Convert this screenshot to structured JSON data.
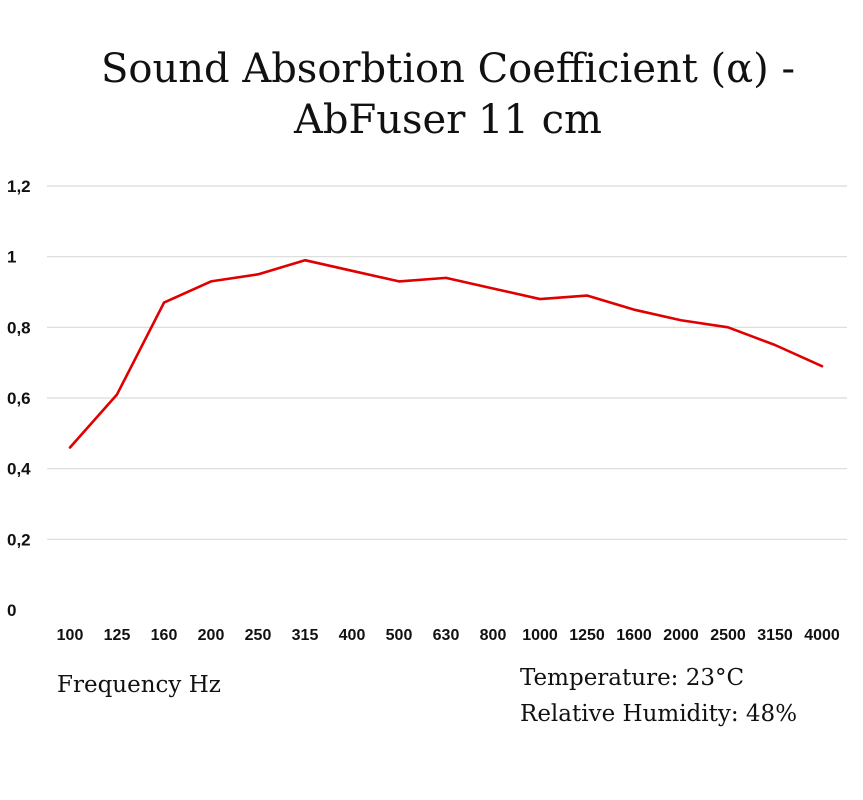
{
  "chart_data": {
    "type": "line",
    "title_lines": [
      "Sound Absorbtion Coefficient (α) -",
      "AbFuser 11 cm"
    ],
    "categories": [
      "100",
      "125",
      "160",
      "200",
      "250",
      "315",
      "400",
      "500",
      "630",
      "800",
      "1000",
      "1250",
      "1600",
      "2000",
      "2500",
      "3150",
      "4000"
    ],
    "series": [
      {
        "values": [
          0.46,
          0.61,
          0.87,
          0.93,
          0.95,
          0.99,
          0.96,
          0.93,
          0.94,
          0.91,
          0.88,
          0.89,
          0.85,
          0.82,
          0.8,
          0.75,
          0.69
        ],
        "color": "#e00000"
      }
    ],
    "ylim": [
      0,
      1.2
    ],
    "yticks": [
      0,
      0.2,
      0.4,
      0.6,
      0.8,
      1,
      1.2
    ],
    "ytick_labels": [
      "0",
      "0,2",
      "0,4",
      "0,6",
      "0,8",
      "1",
      "1,2"
    ],
    "xlabel": "Frequency Hz",
    "annotations": [
      "Temperature: 23°C",
      "Relative Humidity: 48%"
    ],
    "grid": true,
    "legend": "none",
    "colors": {
      "line": "#e00000",
      "grid": "#d9d9d9",
      "text": "#111111"
    }
  }
}
